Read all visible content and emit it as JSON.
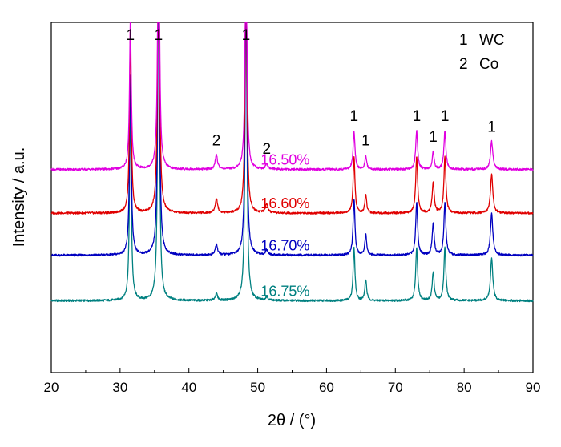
{
  "chart_data": {
    "type": "line",
    "title": "",
    "xlabel": "2θ / (°)",
    "ylabel": "Intensity / a.u.",
    "xlim": [
      20,
      90
    ],
    "xticks": [
      20,
      30,
      40,
      50,
      60,
      70,
      80,
      90
    ],
    "y_ticks_shown": false,
    "grid": false,
    "legend": {
      "placement": "top-right",
      "entries": [
        {
          "marker": "1",
          "label": "WC"
        },
        {
          "marker": "2",
          "label": "Co"
        }
      ]
    },
    "peak_annotations": [
      {
        "x": 31.5,
        "label": "1"
      },
      {
        "x": 35.6,
        "label": "1"
      },
      {
        "x": 44.0,
        "label": "2"
      },
      {
        "x": 48.3,
        "label": "1"
      },
      {
        "x": 51.3,
        "label": "2"
      },
      {
        "x": 64.0,
        "label": "1"
      },
      {
        "x": 65.7,
        "label": "1"
      },
      {
        "x": 73.1,
        "label": "1"
      },
      {
        "x": 75.5,
        "label": "1"
      },
      {
        "x": 77.2,
        "label": "1"
      },
      {
        "x": 84.0,
        "label": "1"
      }
    ],
    "series": [
      {
        "name": "16.50%",
        "color": "#e000e0",
        "baseline": 0.58,
        "peaks": [
          {
            "x": 31.5,
            "h": 0.43,
            "w": 0.15
          },
          {
            "x": 35.6,
            "h": 0.84,
            "w": 0.15
          },
          {
            "x": 44.0,
            "h": 0.04,
            "w": 0.2
          },
          {
            "x": 48.3,
            "h": 0.71,
            "w": 0.15
          },
          {
            "x": 51.3,
            "h": 0.015,
            "w": 0.2
          },
          {
            "x": 64.0,
            "h": 0.11,
            "w": 0.16
          },
          {
            "x": 65.7,
            "h": 0.04,
            "w": 0.16
          },
          {
            "x": 73.1,
            "h": 0.11,
            "w": 0.17
          },
          {
            "x": 75.5,
            "h": 0.05,
            "w": 0.17
          },
          {
            "x": 77.2,
            "h": 0.11,
            "w": 0.17
          },
          {
            "x": 84.0,
            "h": 0.08,
            "w": 0.2
          }
        ]
      },
      {
        "name": "16.60%",
        "color": "#e00000",
        "baseline": 0.455,
        "peaks": [
          {
            "x": 31.5,
            "h": 0.53,
            "w": 0.15
          },
          {
            "x": 35.6,
            "h": 0.96,
            "w": 0.15
          },
          {
            "x": 44.0,
            "h": 0.04,
            "w": 0.2
          },
          {
            "x": 48.3,
            "h": 0.79,
            "w": 0.15
          },
          {
            "x": 51.3,
            "h": 0.025,
            "w": 0.2
          },
          {
            "x": 64.0,
            "h": 0.16,
            "w": 0.16
          },
          {
            "x": 65.7,
            "h": 0.05,
            "w": 0.16
          },
          {
            "x": 73.1,
            "h": 0.16,
            "w": 0.17
          },
          {
            "x": 75.5,
            "h": 0.09,
            "w": 0.17
          },
          {
            "x": 77.2,
            "h": 0.16,
            "w": 0.17
          },
          {
            "x": 84.0,
            "h": 0.11,
            "w": 0.2
          }
        ]
      },
      {
        "name": "16.70%",
        "color": "#0000c0",
        "baseline": 0.335,
        "peaks": [
          {
            "x": 31.5,
            "h": 0.52,
            "w": 0.15
          },
          {
            "x": 35.6,
            "h": 0.98,
            "w": 0.15
          },
          {
            "x": 44.0,
            "h": 0.03,
            "w": 0.2
          },
          {
            "x": 48.3,
            "h": 0.86,
            "w": 0.15
          },
          {
            "x": 51.3,
            "h": 0.015,
            "w": 0.2
          },
          {
            "x": 64.0,
            "h": 0.16,
            "w": 0.16
          },
          {
            "x": 65.7,
            "h": 0.06,
            "w": 0.16
          },
          {
            "x": 73.1,
            "h": 0.15,
            "w": 0.17
          },
          {
            "x": 75.5,
            "h": 0.09,
            "w": 0.17
          },
          {
            "x": 77.2,
            "h": 0.15,
            "w": 0.17
          },
          {
            "x": 84.0,
            "h": 0.12,
            "w": 0.2
          }
        ]
      },
      {
        "name": "16.75%",
        "color": "#008080",
        "baseline": 0.205,
        "peaks": [
          {
            "x": 31.5,
            "h": 0.57,
            "w": 0.15
          },
          {
            "x": 35.6,
            "h": 1.02,
            "w": 0.15
          },
          {
            "x": 44.0,
            "h": 0.02,
            "w": 0.2
          },
          {
            "x": 48.3,
            "h": 0.96,
            "w": 0.15
          },
          {
            "x": 51.3,
            "h": 0.01,
            "w": 0.2
          },
          {
            "x": 64.0,
            "h": 0.15,
            "w": 0.16
          },
          {
            "x": 65.7,
            "h": 0.06,
            "w": 0.16
          },
          {
            "x": 73.1,
            "h": 0.15,
            "w": 0.17
          },
          {
            "x": 75.5,
            "h": 0.08,
            "w": 0.17
          },
          {
            "x": 77.2,
            "h": 0.15,
            "w": 0.17
          },
          {
            "x": 84.0,
            "h": 0.12,
            "w": 0.2
          }
        ]
      }
    ]
  }
}
